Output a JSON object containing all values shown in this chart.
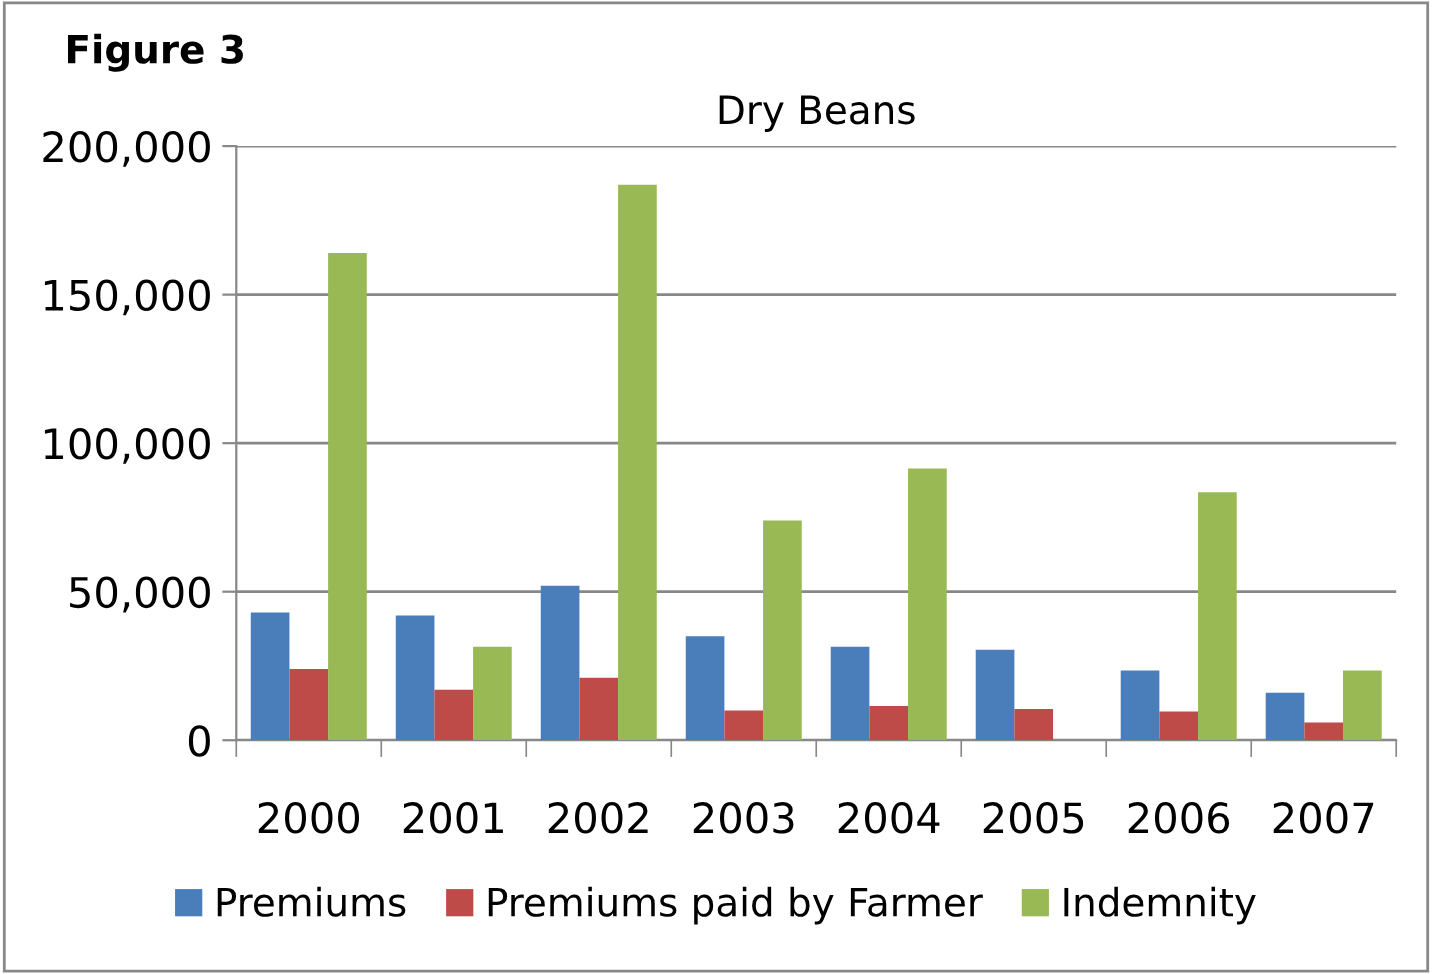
{
  "chart_data": {
    "type": "bar",
    "title": "Dry Beans",
    "annotations": [
      "Figure 3"
    ],
    "categories": [
      "2000",
      "2001",
      "2002",
      "2003",
      "2004",
      "2005",
      "2006",
      "2007"
    ],
    "series": [
      {
        "name": "Premiums",
        "color": "#4a7ebb",
        "values": [
          43000,
          42000,
          52000,
          35000,
          31500,
          30500,
          23500,
          16000
        ]
      },
      {
        "name": "Premiums paid by Farmer",
        "color": "#be4b48",
        "values": [
          24000,
          17000,
          21000,
          10000,
          11500,
          10500,
          9700,
          6000
        ]
      },
      {
        "name": "Indemnity",
        "color": "#98b954",
        "values": [
          164000,
          31500,
          187000,
          74000,
          91500,
          0,
          83500,
          23500
        ]
      }
    ],
    "ylim": [
      0,
      200000
    ],
    "yticks": [
      {
        "value": 0,
        "label": "0"
      },
      {
        "value": 50000,
        "label": "50,000"
      },
      {
        "value": 100000,
        "label": "100,000"
      },
      {
        "value": 150000,
        "label": "150,000"
      },
      {
        "value": 200000,
        "label": "200,000"
      }
    ],
    "grid": "y",
    "legend": "bottom"
  }
}
